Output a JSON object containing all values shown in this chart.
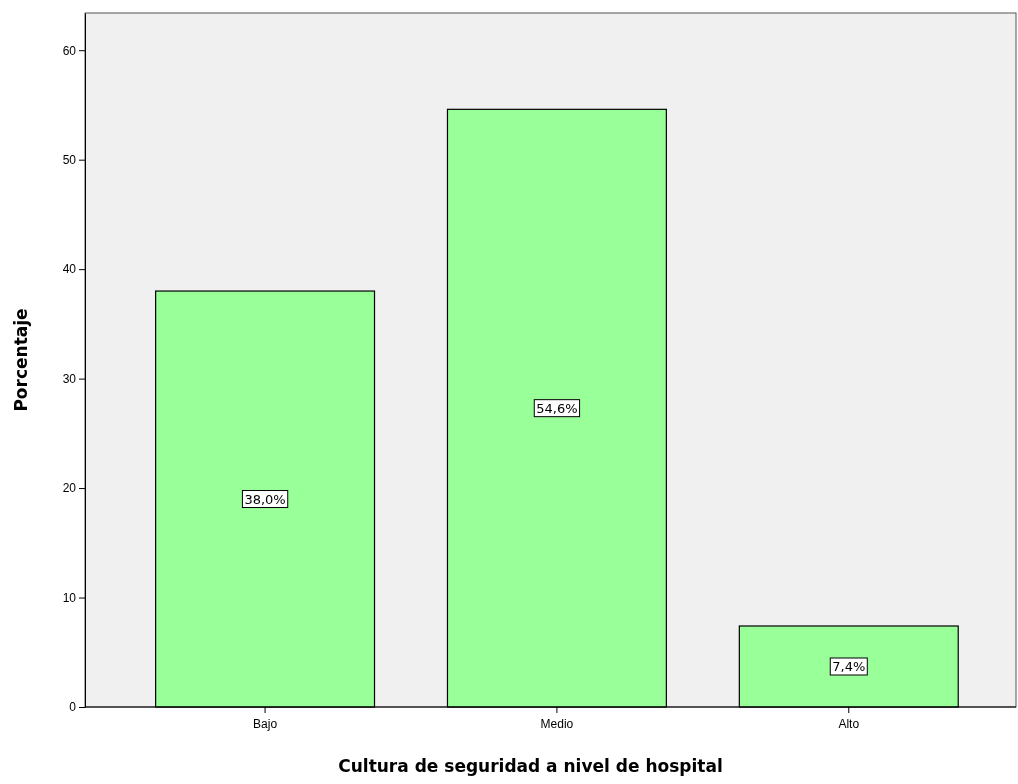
{
  "chart_data": {
    "type": "bar",
    "xlabel": "Cultura de seguridad a nivel de hospital",
    "ylabel": "Porcentaje",
    "categories": [
      "Bajo",
      "Medio",
      "Alto"
    ],
    "values": [
      38.0,
      54.6,
      7.4
    ],
    "value_labels": [
      "38,0%",
      "54,6%",
      "7,4%"
    ],
    "color": "#99ff99",
    "ylim": [
      0,
      63.4
    ],
    "yticks": [
      0,
      10,
      20,
      30,
      40,
      50,
      60
    ],
    "grid": false
  }
}
